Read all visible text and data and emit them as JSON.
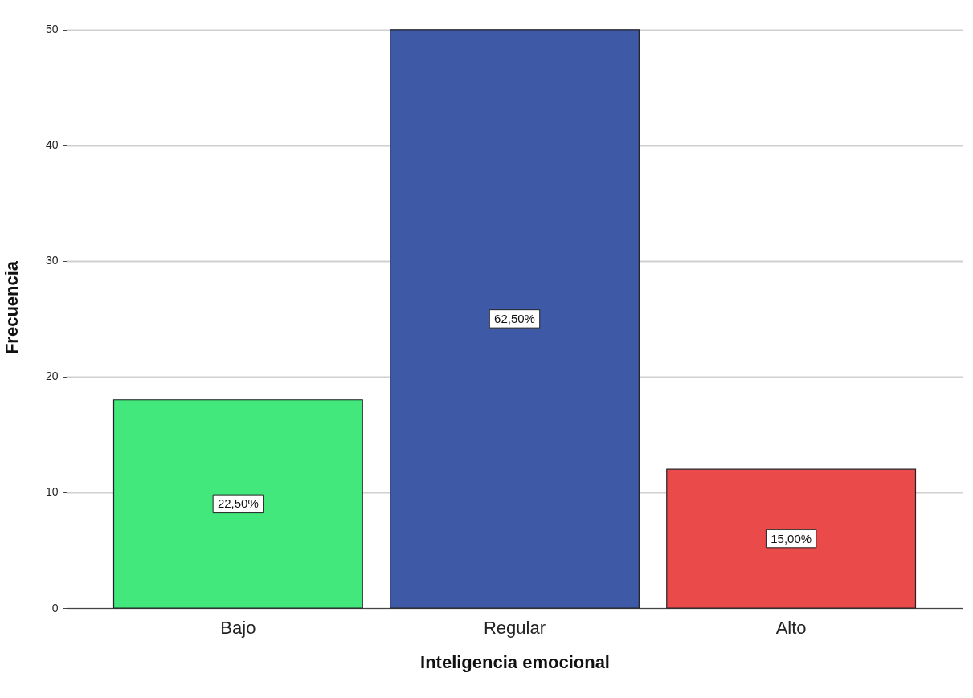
{
  "chart_data": {
    "type": "bar",
    "xlabel": "Inteligencia emocional",
    "ylabel": "Frecuencia",
    "categories": [
      "Bajo",
      "Regular",
      "Alto"
    ],
    "values": [
      18,
      50,
      12
    ],
    "colors": [
      "#42e87c",
      "#3e59a6",
      "#eb4a4a"
    ],
    "annotations": [
      "22,50%",
      "62,50%",
      "15,00%"
    ],
    "ylim": [
      0,
      52
    ],
    "yticks": [
      0,
      10,
      20,
      30,
      40,
      50
    ],
    "grid": "y"
  }
}
